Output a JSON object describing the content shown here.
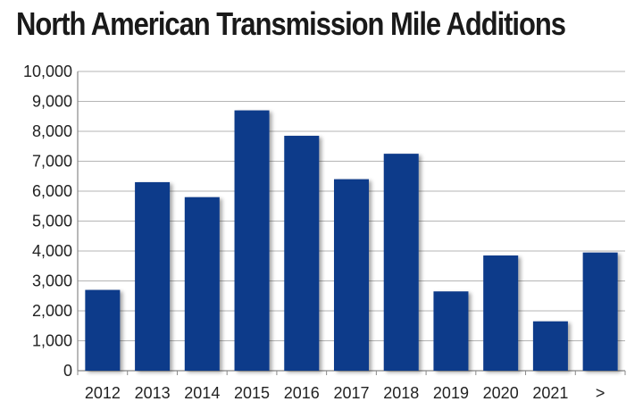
{
  "chart_data": {
    "type": "bar",
    "title": "North American Transmission Mile Additions",
    "xlabel": "",
    "ylabel": "",
    "categories": [
      "2012",
      "2013",
      "2014",
      "2015",
      "2016",
      "2017",
      "2018",
      "2019",
      "2020",
      "2021",
      ">"
    ],
    "values": [
      2700,
      6300,
      5800,
      8700,
      7850,
      6400,
      7250,
      2650,
      3850,
      1650,
      3950
    ],
    "ylim": [
      0,
      10000
    ],
    "yticks": [
      0,
      1000,
      2000,
      3000,
      4000,
      5000,
      6000,
      7000,
      8000,
      9000,
      10000
    ],
    "ytick_labels": [
      "0",
      "1,000",
      "2,000",
      "3,000",
      "4,000",
      "5,000",
      "6,000",
      "7,000",
      "8,000",
      "9,000",
      "10,000"
    ],
    "grid": true,
    "colors": {
      "bar": "#0d3a8a",
      "grid": "#b5b5b5",
      "axis": "#888888"
    }
  }
}
